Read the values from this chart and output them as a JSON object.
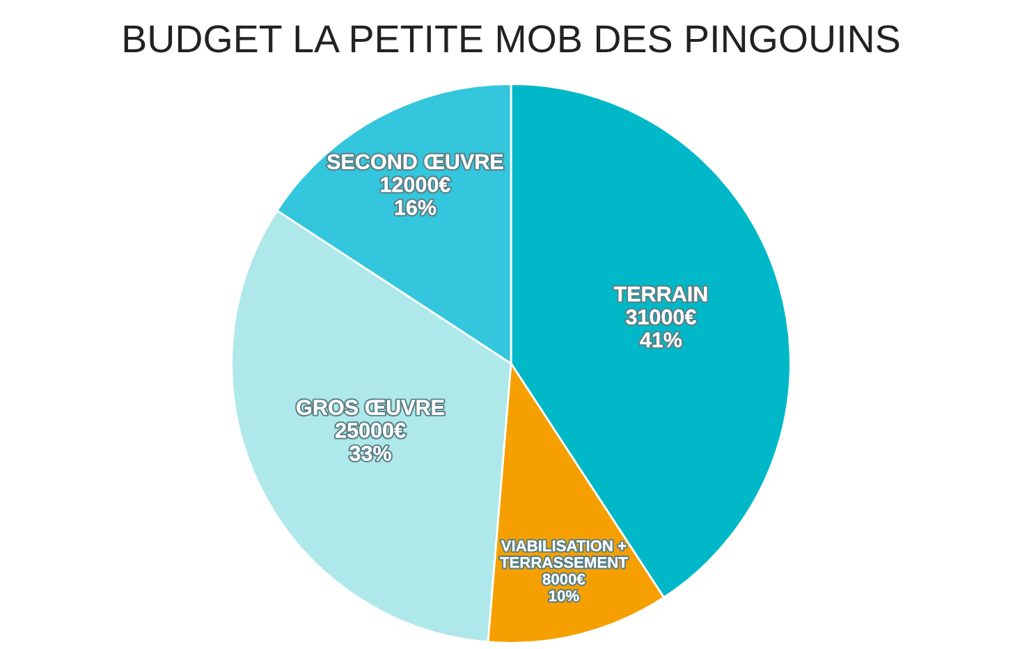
{
  "chart_data": {
    "type": "pie",
    "title": "BUDGET LA PETITE MOB DES PINGOUINS",
    "categories": [
      "TERRAIN",
      "VIABILISATION +\nTERRASSEMENT",
      "GROS ŒUVRE",
      "SECOND ŒUVRE"
    ],
    "values": [
      31000,
      8000,
      25000,
      12000
    ],
    "value_labels": [
      "31000€\n41%",
      "8000€\n10%",
      "25000€\n33%",
      "12000€\n16%"
    ],
    "colors": [
      "#00b8c8",
      "#f5a000",
      "#aee8ea",
      "#34c6dc"
    ]
  }
}
